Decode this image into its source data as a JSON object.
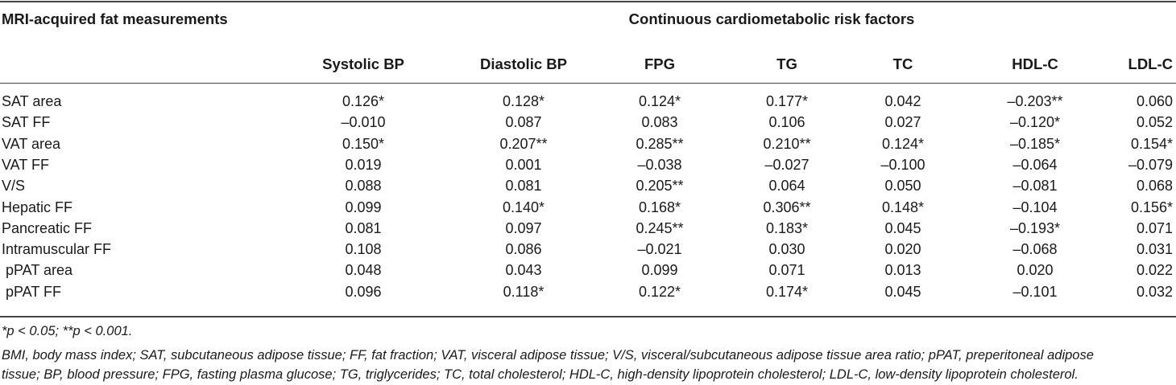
{
  "table": {
    "header": {
      "stub_label": "MRI-acquired fat measurements",
      "group_label": "Continuous cardiometabolic risk factors",
      "columns": [
        "Systolic BP",
        "Diastolic BP",
        "FPG",
        "TG",
        "TC",
        "HDL-C",
        "LDL-C"
      ]
    },
    "rows": [
      {
        "label": "SAT area",
        "values": [
          "0.126*",
          "0.128*",
          "0.124*",
          "0.177*",
          "0.042",
          "–0.203**",
          "0.060"
        ]
      },
      {
        "label": "SAT FF",
        "values": [
          "–0.010",
          "0.087",
          "0.083",
          "0.106",
          "0.027",
          "–0.120*",
          "0.052"
        ]
      },
      {
        "label": "VAT area",
        "values": [
          "0.150*",
          "0.207**",
          "0.285**",
          "0.210**",
          "0.124*",
          "–0.185*",
          "0.154*"
        ]
      },
      {
        "label": "VAT FF",
        "values": [
          "0.019",
          "0.001",
          "–0.038",
          "–0.027",
          "–0.100",
          "–0.064",
          "–0.079"
        ]
      },
      {
        "label": "V/S",
        "values": [
          "0.088",
          "0.081",
          "0.205**",
          "0.064",
          "0.050",
          "–0.081",
          "0.068"
        ]
      },
      {
        "label": "Hepatic FF",
        "values": [
          "0.099",
          "0.140*",
          "0.168*",
          "0.306**",
          "0.148*",
          "–0.104",
          "0.156*"
        ]
      },
      {
        "label": "Pancreatic FF",
        "values": [
          "0.081",
          "0.097",
          "0.245**",
          "0.183*",
          "0.045",
          "–0.193*",
          "0.071"
        ]
      },
      {
        "label": "Intramuscular FF",
        "values": [
          "0.108",
          "0.086",
          "–0.021",
          "0.030",
          "0.020",
          "–0.068",
          "0.031"
        ]
      },
      {
        "label": " pPAT area",
        "values": [
          "0.048",
          "0.043",
          "0.099",
          "0.071",
          "0.013",
          "0.020",
          "0.022"
        ]
      },
      {
        "label": " pPAT FF",
        "values": [
          "0.096",
          "0.118*",
          "0.122*",
          "0.174*",
          "0.045",
          "–0.101",
          "0.032"
        ]
      }
    ]
  },
  "footnotes": {
    "significance": "*p < 0.05; **p < 0.001.",
    "abbreviations_line1": "BMI, body mass index; SAT, subcutaneous adipose tissue; FF, fat fraction; VAT, visceral adipose tissue; V/S, visceral/subcutaneous adipose tissue area ratio; pPAT, preperitoneal adipose",
    "abbreviations_line2": "tissue; BP, blood pressure; FPG, fasting plasma glucose; TG, triglycerides; TC, total cholesterol; HDL-C, high-density lipoprotein cholesterol; LDL-C, low-density lipoprotein cholesterol."
  }
}
